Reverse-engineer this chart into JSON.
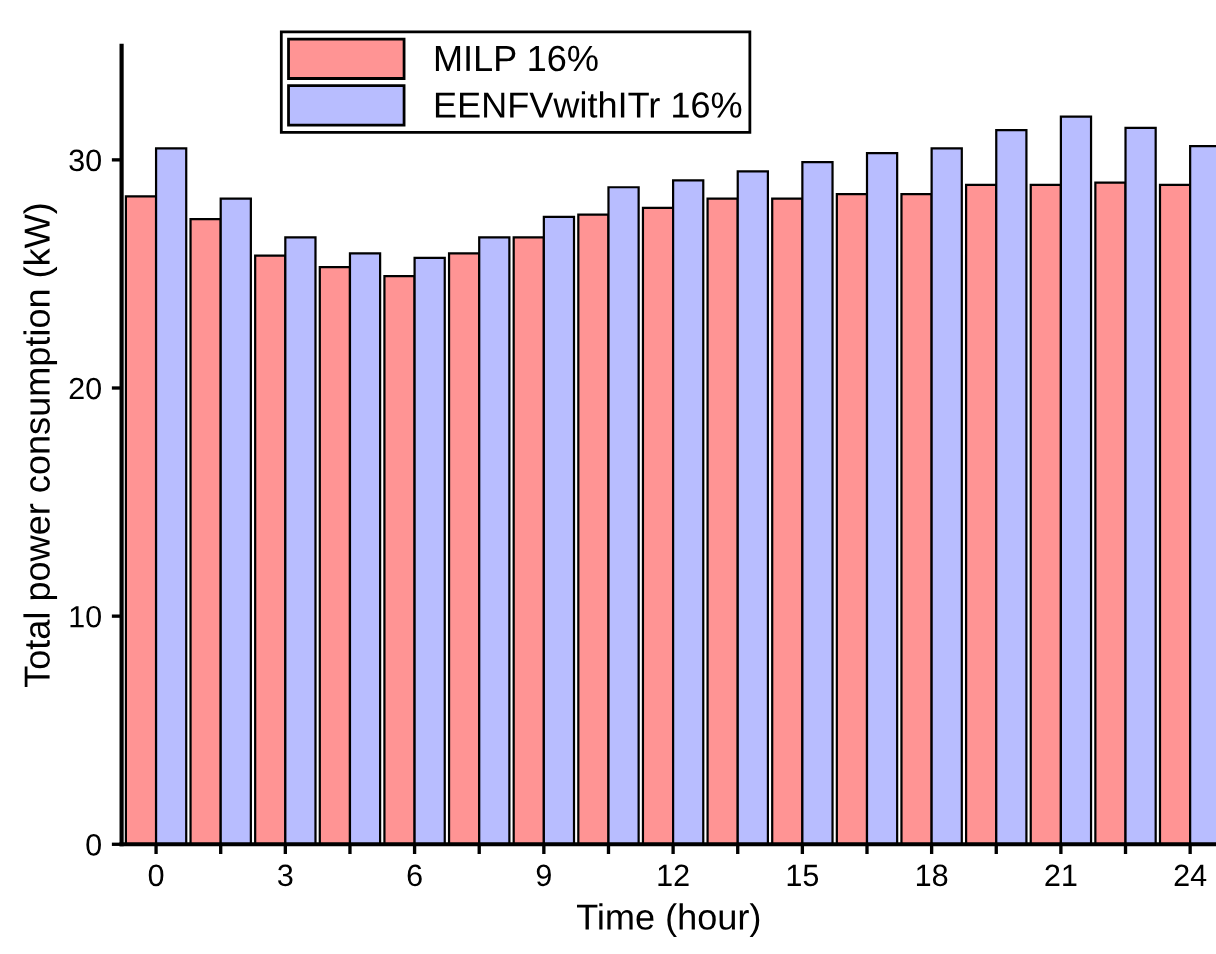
{
  "chart_data": {
    "type": "bar",
    "xlabel": "Time (hour)",
    "ylabel": "Total power consumption (kW)",
    "x": [
      0,
      1.5,
      3,
      4.5,
      6,
      7.5,
      9,
      10.5,
      12,
      13.5,
      15,
      16.5,
      18,
      19.5,
      21,
      22.5,
      24
    ],
    "series": [
      {
        "name": "MILP 16%",
        "color": "#ff9494",
        "values": [
          28.4,
          27.4,
          25.8,
          25.3,
          24.9,
          25.9,
          26.6,
          27.6,
          27.9,
          28.3,
          28.3,
          28.5,
          28.5,
          28.9,
          28.9,
          29.0,
          28.9
        ]
      },
      {
        "name": "EENFVwithITr 16%",
        "color": "#b8bdff",
        "values": [
          30.5,
          28.3,
          26.6,
          25.9,
          25.7,
          26.6,
          27.5,
          28.8,
          29.1,
          29.5,
          29.9,
          30.3,
          30.5,
          31.3,
          31.9,
          31.4,
          30.6
        ]
      }
    ],
    "xlim": [
      -0.8,
      24.6
    ],
    "ylim": [
      0,
      35
    ],
    "xticks": [
      0,
      {
        "value": 1.5,
        "label": null
      },
      3,
      {
        "value": 4.5,
        "label": null
      },
      6,
      {
        "value": 7.5,
        "label": null
      },
      9,
      {
        "value": 10.5,
        "label": null
      },
      12,
      {
        "value": 13.5,
        "label": null
      },
      15,
      {
        "value": 16.5,
        "label": null
      },
      18,
      {
        "value": 19.5,
        "label": null
      },
      21,
      {
        "value": 22.5,
        "label": null
      },
      24
    ],
    "yticks": [
      0,
      10,
      20,
      30
    ],
    "legend": "top left",
    "grid": false
  }
}
